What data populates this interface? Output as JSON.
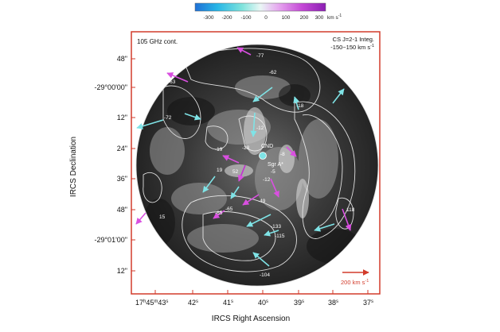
{
  "colorbar": {
    "ticks": [
      "-300",
      "-200",
      "-100",
      "0",
      "100",
      "200",
      "300"
    ],
    "unit": "km s",
    "unit_exp": "-1",
    "colors": [
      "#1f6fd6",
      "#27b6e6",
      "#7fe3dc",
      "#d9f4f0",
      "#e6a6ef",
      "#c448d6",
      "#8b1fb3"
    ]
  },
  "panel": {
    "label_left": "105 GHz cont.",
    "label_right_line1": "CS J=2-1 Integ.",
    "label_right_line2": "-150~150 km s",
    "label_right_exp": "-1",
    "frame_color": "#d23b2b"
  },
  "axes": {
    "ylabel": "IRCS Declination",
    "xlabel": "IRCS Right Ascension",
    "yticks": [
      "48\"",
      "-29°00'00\"",
      "12\"",
      "24\"",
      "36\"",
      "48\"",
      "-29°01'00\"",
      "12\""
    ],
    "xticks": [
      {
        "main": "17",
        "sup1": "h",
        "mid": "45",
        "sup2": "m",
        "tail": "43",
        "sup3": "s"
      },
      {
        "main": "42",
        "sup1": "s"
      },
      {
        "main": "41",
        "sup1": "s"
      },
      {
        "main": "40",
        "sup1": "s"
      },
      {
        "main": "39",
        "sup1": "s"
      },
      {
        "main": "38",
        "sup1": "s"
      },
      {
        "main": "37",
        "sup1": "s"
      }
    ]
  },
  "labels": {
    "cnd": "CND",
    "sgra": "Sgr A*",
    "scale": "200 km s",
    "scale_exp": "-1",
    "velocities": [
      "-77",
      "-62",
      "-63",
      "-72",
      "-12",
      "-28",
      "-19",
      "52",
      "19",
      "-65",
      "-5",
      "-12",
      "-49",
      "-65",
      "15",
      "-133",
      "-115",
      "-104",
      "-18",
      "118",
      "-8"
    ]
  },
  "colors": {
    "scale_arrow": "#d23b2b",
    "arrow_blue": "#7fe3e6",
    "arrow_magenta": "#d94fe0",
    "contour": "#f2f2f2"
  }
}
